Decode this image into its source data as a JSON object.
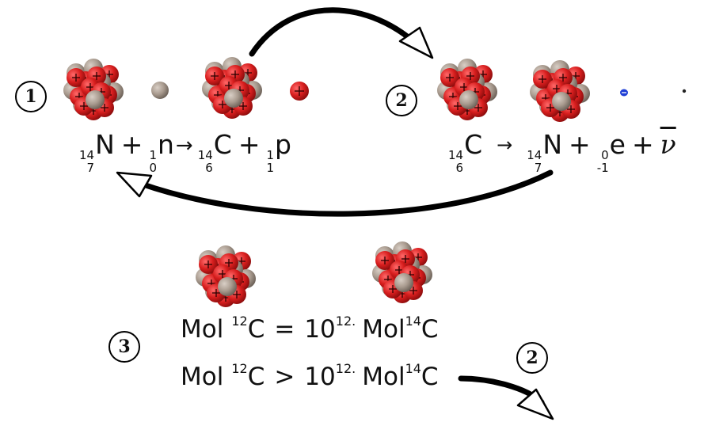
{
  "steps": {
    "one": "1",
    "two": "2",
    "three": "3",
    "two_bottom": "2"
  },
  "reaction1": {
    "n_mass": "14",
    "n_atomic": "7",
    "n_symbol": "N",
    "plus1": "+",
    "neutron_mass": "1",
    "neutron_atomic": "0",
    "neutron_symbol": "n",
    "arrow": "→",
    "c_mass": "14",
    "c_atomic": "6",
    "c_symbol": "C",
    "plus2": "+",
    "proton_mass": "1",
    "proton_atomic": "1",
    "proton_symbol": "p"
  },
  "reaction2": {
    "c_mass": "14",
    "c_atomic": "6",
    "c_symbol": "C",
    "arrow": "→",
    "n_mass": "14",
    "n_atomic": "7",
    "n_symbol": "N",
    "plus1": "+",
    "e_mass": "0",
    "e_atomic": "-1",
    "e_symbol": "e",
    "plus2": "+",
    "antineutrino": "ν"
  },
  "ratio_equal": {
    "mol1": "Mol",
    "c12_mass": "12",
    "c12_symbol": "C",
    "relation": "=",
    "factor": "10",
    "factor_exp": "12.",
    "mol2": "Mol",
    "c14_mass": "14",
    "c14_symbol": "C"
  },
  "ratio_greater": {
    "mol1": "Mol",
    "c12_mass": "12",
    "c12_symbol": "C",
    "relation": ">",
    "factor": "10",
    "factor_exp": "12.",
    "mol2": "Mol",
    "c14_mass": "14",
    "c14_symbol": "C"
  },
  "colors": {
    "proton": "#d81e1e",
    "proton_dark": "#9c0f0f",
    "neutron": "#a89a8e",
    "neutron_dark": "#6f655c",
    "electron": "#1f3fd6",
    "arrow": "#000000"
  }
}
